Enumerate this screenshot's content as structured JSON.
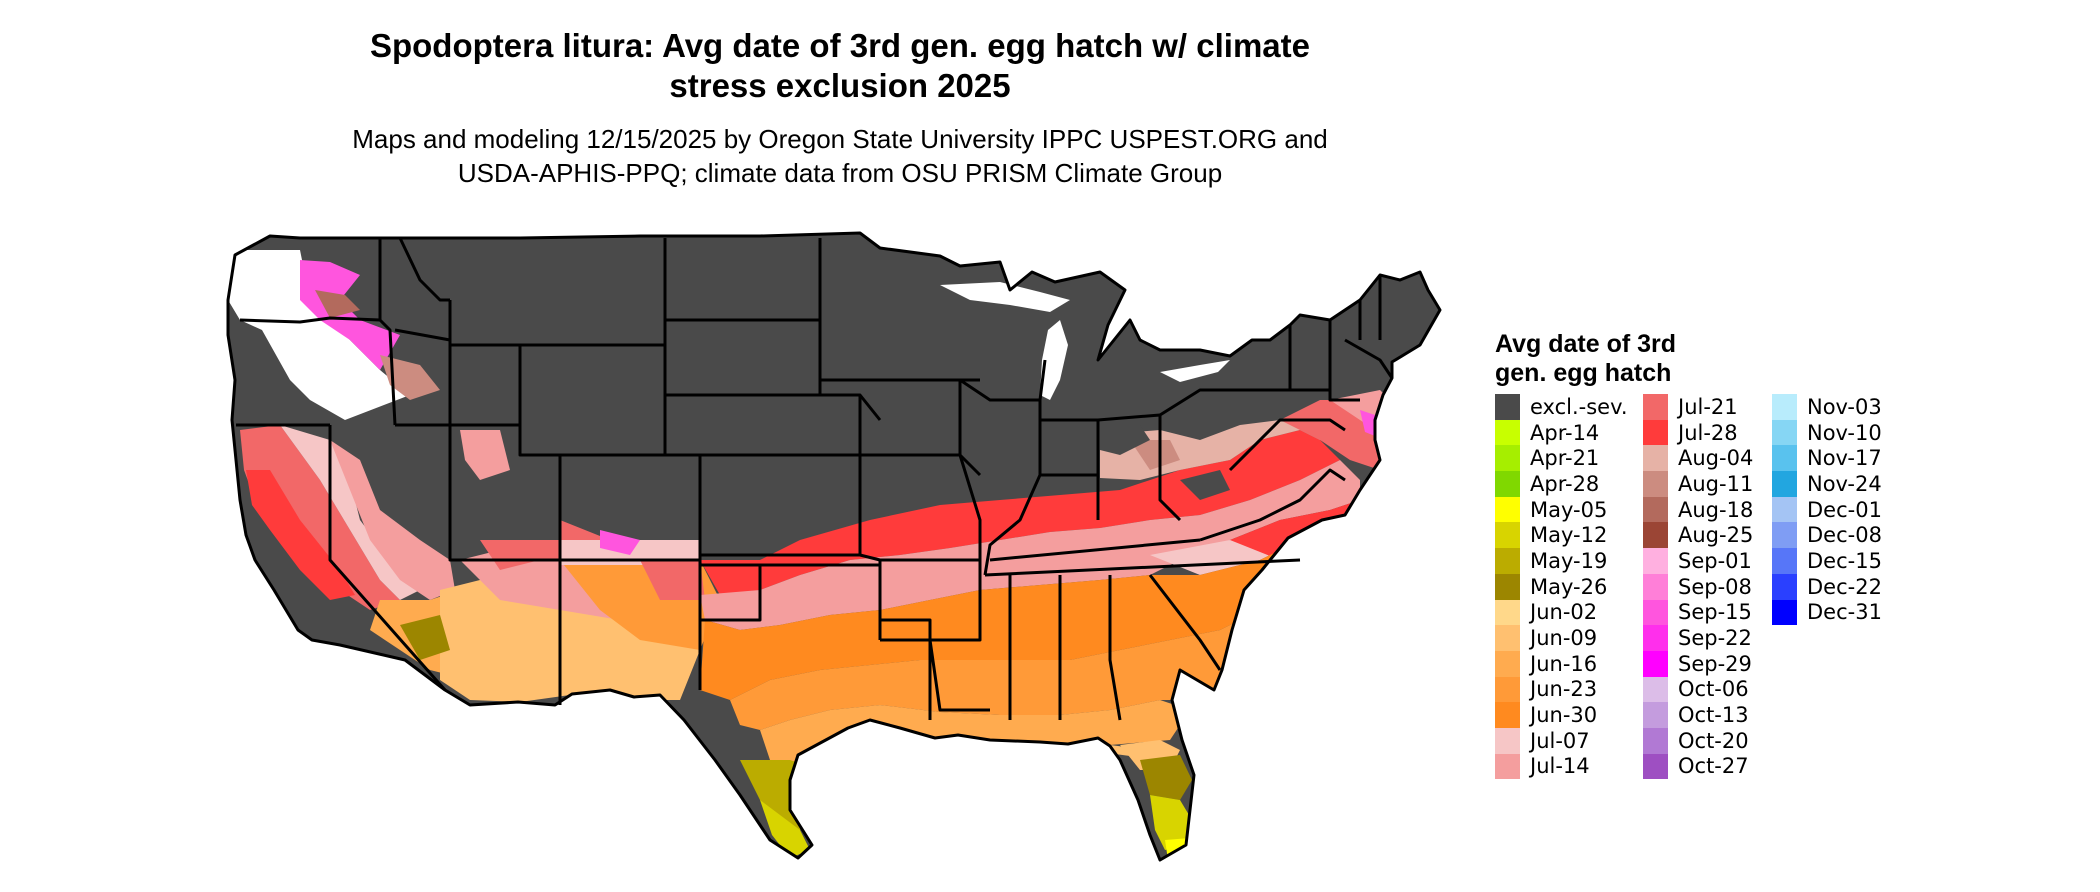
{
  "title_line1": "Spodoptera litura: Avg date of 3rd gen. egg hatch w/ climate",
  "title_line2": "stress exclusion 2025",
  "subtitle_line1": "Maps and modeling 12/15/2025 by Oregon State University IPPC USPEST.ORG and",
  "subtitle_line2": "USDA-APHIS-PPQ; climate data from OSU PRISM Climate Group",
  "legend": {
    "title_line1": "Avg date of 3rd",
    "title_line2": "gen. egg hatch",
    "columns": [
      [
        {
          "label": "excl.-sev.",
          "color": "#4a4a4a"
        },
        {
          "label": "Apr-14",
          "color": "#c8ff00"
        },
        {
          "label": "Apr-21",
          "color": "#a6ee00"
        },
        {
          "label": "Apr-28",
          "color": "#80d800"
        },
        {
          "label": "May-05",
          "color": "#ffff00"
        },
        {
          "label": "May-12",
          "color": "#d8d400"
        },
        {
          "label": "May-19",
          "color": "#bbac00"
        },
        {
          "label": "May-26",
          "color": "#9c8600"
        },
        {
          "label": "Jun-02",
          "color": "#ffd88a"
        },
        {
          "label": "Jun-09",
          "color": "#ffc070"
        },
        {
          "label": "Jun-16",
          "color": "#ffab4f"
        },
        {
          "label": "Jun-23",
          "color": "#ff9a38"
        },
        {
          "label": "Jun-30",
          "color": "#ff8a1f"
        },
        {
          "label": "Jul-07",
          "color": "#f6c6c6"
        },
        {
          "label": "Jul-14",
          "color": "#f49e9e"
        }
      ],
      [
        {
          "label": "Jul-21",
          "color": "#f26868"
        },
        {
          "label": "Jul-28",
          "color": "#ff3b3b"
        },
        {
          "label": "Aug-04",
          "color": "#e6b2a6"
        },
        {
          "label": "Aug-11",
          "color": "#cc8c80"
        },
        {
          "label": "Aug-18",
          "color": "#b36a5d"
        },
        {
          "label": "Aug-25",
          "color": "#9b4535"
        },
        {
          "label": "Sep-01",
          "color": "#ffb0e0"
        },
        {
          "label": "Sep-08",
          "color": "#ff7fd8"
        },
        {
          "label": "Sep-15",
          "color": "#ff55de"
        },
        {
          "label": "Sep-22",
          "color": "#ff2fec"
        },
        {
          "label": "Sep-29",
          "color": "#ff00ff"
        },
        {
          "label": "Oct-06",
          "color": "#dcbde8"
        },
        {
          "label": "Oct-13",
          "color": "#c49cde"
        },
        {
          "label": "Oct-20",
          "color": "#b179d4"
        },
        {
          "label": "Oct-27",
          "color": "#9e4fc2"
        }
      ],
      [
        {
          "label": "Nov-03",
          "color": "#b8ecfc"
        },
        {
          "label": "Nov-10",
          "color": "#86d6f4"
        },
        {
          "label": "Nov-17",
          "color": "#59c2ee"
        },
        {
          "label": "Nov-24",
          "color": "#22a6e0"
        },
        {
          "label": "Dec-01",
          "color": "#a4c4f4"
        },
        {
          "label": "Dec-08",
          "color": "#7f9df4"
        },
        {
          "label": "Dec-15",
          "color": "#5776f8"
        },
        {
          "label": "Dec-22",
          "color": "#2a40ff"
        },
        {
          "label": "Dec-31",
          "color": "#0000ff"
        }
      ]
    ]
  }
}
